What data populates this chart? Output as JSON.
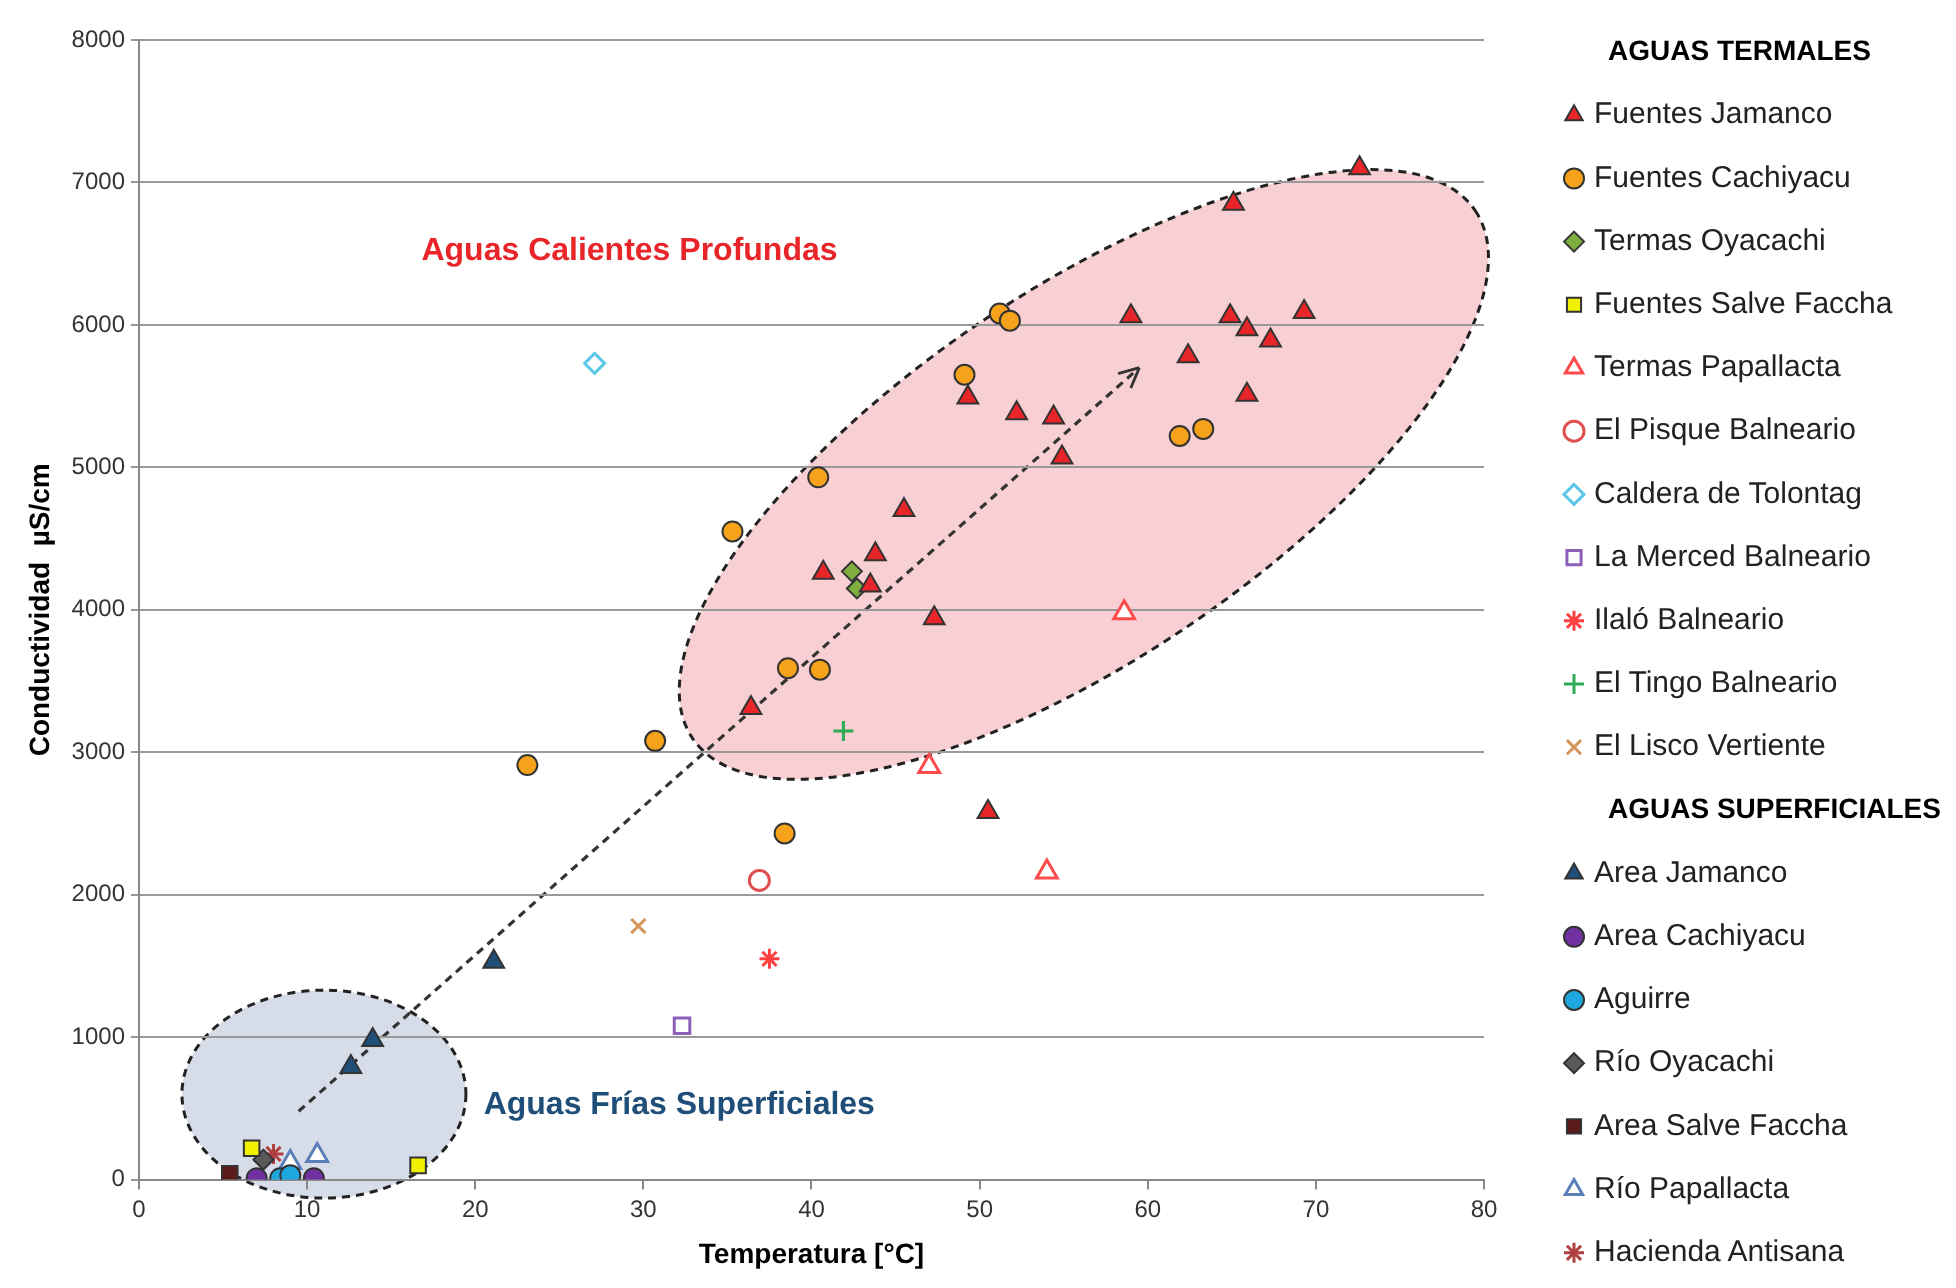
{
  "chart_data": {
    "type": "scatter",
    "xlabel": "Temperatura [°C]",
    "ylabel": "Conductividad  µS/cm",
    "legend_title": "AGUAS TERMALES",
    "legend": "right",
    "grid": "y",
    "xlim": [
      0,
      80
    ],
    "xticks": [
      0,
      10,
      20,
      30,
      40,
      50,
      60,
      70,
      80
    ],
    "ylim": [
      0,
      8000
    ],
    "yticks": [
      0,
      1000,
      2000,
      3000,
      4000,
      5000,
      6000,
      7000,
      8000
    ],
    "annotations": [
      "Aguas Calientes Profundas",
      "Aguas Frías Superficiales",
      "AGUAS SUPERFICIALES"
    ],
    "series": [
      {
        "name": "Fuentes Jamanco",
        "color": "#e8262a",
        "marker": "triangle",
        "x": [
          72.6,
          65.1,
          59.0,
          64.9,
          65.9,
          69.3,
          67.3,
          62.4,
          65.9,
          49.3,
          52.2,
          54.4,
          54.9,
          45.5,
          43.8,
          40.7,
          43.5,
          47.3,
          36.4,
          50.5
        ],
        "values": [
          7100,
          6850,
          6060,
          6060,
          5970,
          6090,
          5890,
          5780,
          5510,
          5490,
          5380,
          5350,
          5070,
          4700,
          4390,
          4260,
          4170,
          3940,
          3310,
          2580
        ]
      },
      {
        "name": "Fuentes Cachiyacu",
        "color": "#f7a21b",
        "marker": "circle",
        "x": [
          51.2,
          51.8,
          49.1,
          40.4,
          35.3,
          61.9,
          63.3,
          38.6,
          40.5,
          30.7,
          23.1,
          38.4
        ],
        "values": [
          6080,
          6030,
          5650,
          4930,
          4550,
          5220,
          5270,
          3590,
          3580,
          3080,
          2910,
          2430
        ]
      },
      {
        "name": "Termas Oyacachi",
        "color": "#7fae3f",
        "marker": "diamond",
        "x": [
          42.4,
          42.7
        ],
        "values": [
          4270,
          4150
        ]
      },
      {
        "name": "Fuentes Salve Faccha",
        "color": "#f0f000",
        "marker": "square",
        "x": [
          6.7,
          16.6
        ],
        "values": [
          220,
          100
        ]
      },
      {
        "name": "Termas Papallacta",
        "color": "#ff4b4b",
        "marker": "triangle-open",
        "x": [
          58.6,
          47.0,
          54.0
        ],
        "values": [
          3980,
          2900,
          2160
        ]
      },
      {
        "name": "El Pisque Balneario",
        "color": "#e05050",
        "marker": "circle-open",
        "x": [
          36.9
        ],
        "values": [
          2100
        ]
      },
      {
        "name": "Caldera de Tolontag",
        "color": "#5bc8e8",
        "marker": "diamond-open",
        "x": [
          27.1
        ],
        "values": [
          5730
        ]
      },
      {
        "name": "La Merced Balneario",
        "color": "#8c5fb8",
        "marker": "square-open",
        "x": [
          32.3
        ],
        "values": [
          1080
        ]
      },
      {
        "name": "Ilaló Balneario",
        "color": "#ff4040",
        "marker": "cross",
        "x": [
          37.5
        ],
        "values": [
          1550
        ]
      },
      {
        "name": "El Tingo Balneario",
        "color": "#2eaa55",
        "marker": "plus",
        "x": [
          41.9
        ],
        "values": [
          3150
        ]
      },
      {
        "name": "El Lisco Vertiente",
        "color": "#d4955a",
        "marker": "cross-x",
        "x": [
          29.7
        ],
        "values": [
          1780
        ]
      },
      {
        "name": "Area Jamanco",
        "color": "#1f4e79",
        "marker": "triangle",
        "x": [
          21.1,
          13.9,
          12.6
        ],
        "values": [
          1530,
          980,
          790
        ]
      },
      {
        "name": "Area Cachiyacu",
        "color": "#7030a0",
        "marker": "circle",
        "x": [
          7.0,
          10.4
        ],
        "values": [
          10,
          10
        ]
      },
      {
        "name": "Aguirre",
        "color": "#1fa8e0",
        "marker": "circle",
        "x": [
          8.4,
          9.0
        ],
        "values": [
          10,
          30
        ]
      },
      {
        "name": "Río Oyacachi",
        "color": "#595959",
        "marker": "diamond",
        "x": [
          7.4
        ],
        "values": [
          140
        ]
      },
      {
        "name": "Area Salve Faccha",
        "color": "#5a1a1a",
        "marker": "square",
        "x": [
          5.4
        ],
        "values": [
          40
        ]
      },
      {
        "name": "Río Papallacta",
        "color": "#5b7fb8",
        "marker": "triangle-open",
        "x": [
          9.0,
          10.6
        ],
        "values": [
          120,
          170
        ]
      },
      {
        "name": "Hacienda Antisana",
        "color": "#b04040",
        "marker": "cross",
        "x": [
          8.0
        ],
        "values": [
          180
        ]
      }
    ]
  }
}
